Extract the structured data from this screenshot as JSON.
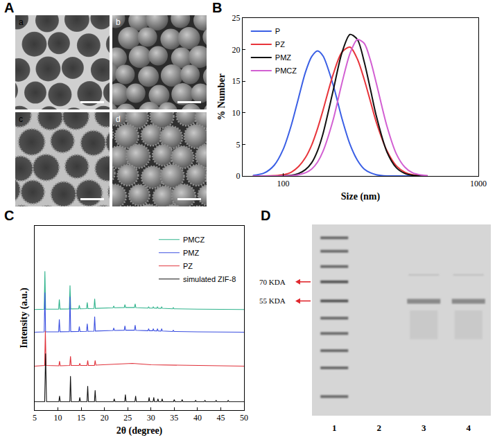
{
  "panels": [
    {
      "panel_label": "A",
      "images": [
        "a",
        "b",
        "c",
        "d"
      ]
    },
    {
      "panel_label": "D",
      "lane_labels": [
        "1",
        "2",
        "3",
        "4"
      ],
      "markers": [
        "70 KDA",
        "55 KDA"
      ]
    }
  ],
  "chart_data": [
    {
      "panel_label": "B",
      "type": "line",
      "x_label": "Size (nm)",
      "y_label": "% Number",
      "log": "x",
      "grid": false,
      "legend": "upper left",
      "xlim": [
        62,
        1000
      ],
      "xticks": [
        100,
        1000
      ],
      "ylim": [
        0,
        25
      ],
      "yticks": [
        0,
        5,
        10,
        15,
        20,
        25
      ],
      "x": [
        70,
        80,
        90,
        100,
        110,
        120,
        130,
        140,
        150,
        160,
        180,
        200,
        220,
        240,
        260,
        280,
        300,
        340,
        380,
        420,
        460,
        500,
        550
      ],
      "series": [
        {
          "name": "P",
          "color": "#3a5fe5",
          "values": [
            0.08,
            0.47,
            1.7,
            4.2,
            8.0,
            12.4,
            16.4,
            18.9,
            19.8,
            19.0,
            14.5,
            9.1,
            5.0,
            2.5,
            1.1,
            0.5,
            0.2,
            0,
            0,
            0,
            0,
            0,
            0
          ]
        },
        {
          "name": "PZ",
          "color": "#e8343a",
          "values": [
            0,
            0,
            0.06,
            0.2,
            0.6,
            1.5,
            2.9,
            4.9,
            7.5,
            10.4,
            16.0,
            19.6,
            20.4,
            18.5,
            15.3,
            11.8,
            8.5,
            4.0,
            1.6,
            0.6,
            0.2,
            0.08,
            0
          ]
        },
        {
          "name": "PMZ",
          "color": "#111111",
          "values": [
            0,
            0,
            0,
            0.02,
            0.1,
            0.4,
            1.0,
            2.1,
            4.0,
            6.7,
            13.4,
            19.5,
            22.4,
            21.6,
            18.1,
            13.7,
            9.5,
            3.8,
            1.3,
            0.4,
            0.1,
            0,
            0
          ]
        },
        {
          "name": "PMCZ",
          "color": "#d25fd2",
          "values": [
            0,
            0,
            0,
            0,
            0.05,
            0.2,
            0.5,
            1.1,
            2.2,
            3.9,
            8.8,
            14.7,
            19.4,
            21.6,
            21.0,
            18.3,
            14.7,
            7.9,
            3.5,
            1.4,
            0.5,
            0.2,
            0.05
          ]
        }
      ]
    },
    {
      "panel_label": "C",
      "type": "line",
      "x_label": "2θ (degree)",
      "y_label": "Intensity (a.u.)",
      "grid": false,
      "legend": "upper right",
      "tick_labels": "x",
      "xlim": [
        5,
        50
      ],
      "xticks": [
        5,
        10,
        15,
        20,
        25,
        30,
        35,
        40,
        45,
        50
      ],
      "ylim": [
        0,
        130
      ],
      "series": [
        {
          "name": "PMCZ",
          "color": "#2fb38c",
          "x": [
            5,
            7.05,
            7.2,
            7.35,
            10.15,
            10.3,
            10.45,
            12.45,
            12.6,
            12.75,
            14.45,
            14.6,
            14.75,
            16.15,
            16.3,
            16.45,
            17.75,
            17.9,
            18.05,
            21.85,
            22.0,
            22.15,
            24.25,
            24.4,
            24.55,
            26.45,
            26.6,
            26.75,
            29.35,
            29.5,
            29.65,
            30.35,
            30.5,
            30.65,
            31.25,
            31.4,
            31.55,
            32.15,
            32.3,
            32.45,
            34.65,
            34.8,
            34.95,
            40,
            50
          ],
          "values": [
            71,
            71.2,
            98,
            71.2,
            71.3,
            78,
            71.3,
            71.4,
            88,
            71.4,
            71.5,
            74,
            71.5,
            71.6,
            76,
            71.6,
            71.7,
            78.5,
            71.8,
            72.2,
            73.5,
            72.2,
            72.4,
            74.5,
            72.4,
            72.4,
            75,
            72.3,
            72,
            73,
            72,
            72,
            73,
            72,
            71.9,
            73,
            71.9,
            71.8,
            73,
            71.8,
            71.5,
            72.3,
            71.5,
            71.2,
            71
          ]
        },
        {
          "name": "PMZ",
          "color": "#3b4fe0",
          "x": [
            5,
            7.05,
            7.2,
            7.35,
            10.15,
            10.3,
            10.45,
            12.45,
            12.6,
            12.75,
            14.45,
            14.6,
            14.75,
            16.15,
            16.3,
            16.45,
            17.75,
            17.9,
            18.05,
            21.85,
            22.0,
            22.15,
            24.25,
            24.4,
            24.55,
            26.45,
            26.6,
            26.75,
            29.35,
            29.5,
            29.65,
            30.35,
            30.5,
            30.65,
            31.25,
            31.4,
            31.55,
            32.15,
            32.3,
            32.45,
            34.65,
            34.8,
            34.95,
            40,
            50
          ],
          "values": [
            55,
            55.2,
            83,
            55.2,
            55.3,
            64,
            55.3,
            55.4,
            80,
            55.4,
            55.5,
            59,
            55.5,
            55.6,
            61,
            55.6,
            55.7,
            66,
            55.8,
            56.2,
            58,
            56.2,
            56.4,
            59.5,
            56.4,
            56.4,
            60,
            56.3,
            56,
            57.5,
            56,
            56,
            57.5,
            56,
            55.9,
            57.5,
            55.9,
            55.8,
            57.5,
            55.8,
            55.5,
            56.5,
            55.5,
            55.2,
            55
          ]
        },
        {
          "name": "PZ",
          "color": "#e0313a",
          "x": [
            5,
            7.15,
            7.3,
            7.45,
            10.2,
            10.35,
            10.5,
            12.55,
            12.7,
            12.85,
            14.55,
            14.7,
            14.85,
            16.25,
            16.4,
            16.55,
            17.85,
            18.0,
            18.15,
            22,
            26,
            30,
            40,
            50
          ],
          "values": [
            31,
            31.5,
            56,
            31.5,
            31.3,
            34.5,
            31.3,
            31.5,
            38,
            31.5,
            31.5,
            33,
            31.5,
            31.5,
            35,
            31.5,
            31.5,
            35,
            31.8,
            32.5,
            33,
            32,
            31.5,
            31
          ]
        },
        {
          "name": "simulated ZIF-8",
          "color": "#111111",
          "x": [
            5,
            7.15,
            7.35,
            7.55,
            10.2,
            10.35,
            10.5,
            12.55,
            12.7,
            12.85,
            14.55,
            14.7,
            14.85,
            16.25,
            16.4,
            16.55,
            17.85,
            18.0,
            18.15,
            21.95,
            22.1,
            22.25,
            24.35,
            24.5,
            24.65,
            26.55,
            26.7,
            26.85,
            29.45,
            29.6,
            29.75,
            30.45,
            30.6,
            30.75,
            31.35,
            31.5,
            31.65,
            32.25,
            32.4,
            32.55,
            34.85,
            35.0,
            35.15,
            36.55,
            36.7,
            36.85,
            39.45,
            39.6,
            39.75,
            41.45,
            41.6,
            41.75,
            43.85,
            44.0,
            44.15,
            46.45,
            46.6,
            46.75,
            50
          ],
          "values": [
            6,
            6,
            40,
            6,
            6,
            10,
            6,
            6,
            24,
            6,
            6,
            9,
            6,
            6,
            17,
            6,
            6,
            14,
            6,
            6,
            8,
            6,
            6,
            11,
            6,
            6,
            10,
            6,
            6,
            9,
            6,
            6,
            9,
            6,
            6,
            8,
            6,
            6,
            8,
            6,
            6,
            7.5,
            6,
            6,
            7.5,
            6,
            6,
            7,
            6,
            6,
            7,
            6,
            6,
            7,
            6,
            6,
            7,
            6,
            6
          ]
        }
      ]
    }
  ]
}
